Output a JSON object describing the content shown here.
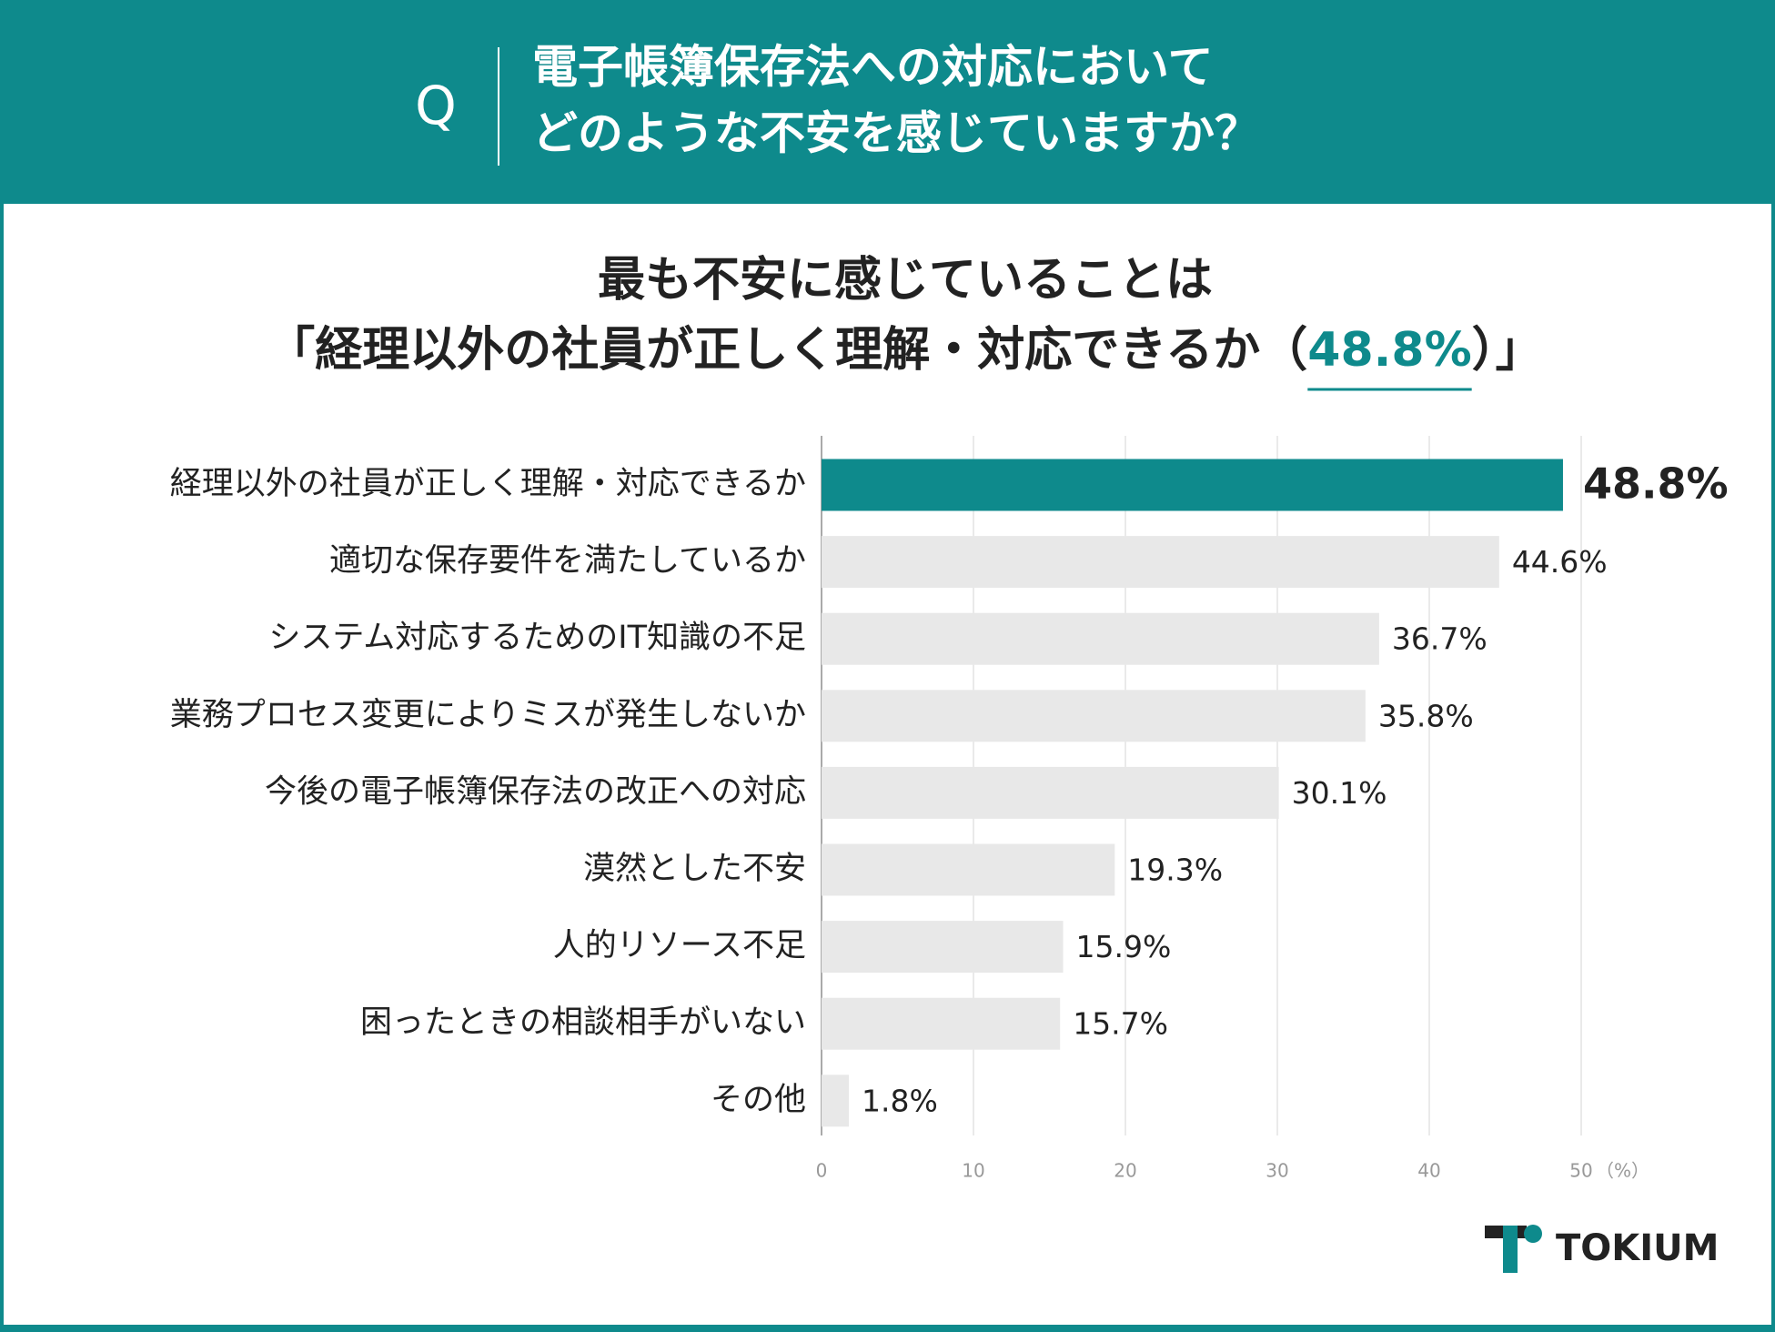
{
  "header": {
    "title_lines": [
      "電子帳簿保存法への対応において",
      "どのような不安を感じていますか？"
    ],
    "icon": "Q"
  },
  "chart_data": {
    "type": "bar",
    "orientation": "horizontal",
    "subtitle_line1": "最も不安に感じていることは",
    "subtitle_line2": [
      "「経理以外の社員が正しく理解・対応できるか（",
      "48.8%",
      "）」"
    ],
    "categories": [
      "経理以外の社員が正しく理解・対応できるか",
      "適切な保存要件を満たしているか",
      "システム対応するためのIT知識の不足",
      "業務プロセス変更によりミスが発生しないか",
      "今後の電子帳簿保存法の改正への対応",
      "漠然とした不安",
      "人的リソース不足",
      "困ったときの相談相手がいない",
      "その他"
    ],
    "values": [
      48.8,
      44.6,
      36.7,
      35.8,
      30.1,
      19.3,
      15.9,
      15.7,
      1.8
    ],
    "value_labels": [
      "48.8%",
      "44.6%",
      "36.7%",
      "35.8%",
      "30.1%",
      "19.3%",
      "15.9%",
      "15.7%",
      "1.8%"
    ],
    "colors": [
      "#0e8a8c",
      "#e8e8e8",
      "#e8e8e8",
      "#e8e8e8",
      "#e8e8e8",
      "#e8e8e8",
      "#e8e8e8",
      "#e8e8e8",
      "#e8e8e8"
    ],
    "xlim": [
      0,
      50
    ],
    "xticks": [
      0,
      10,
      20,
      30,
      40,
      50
    ],
    "x_unit": "（%）",
    "grid": true
  },
  "logo": "TOKIUM"
}
